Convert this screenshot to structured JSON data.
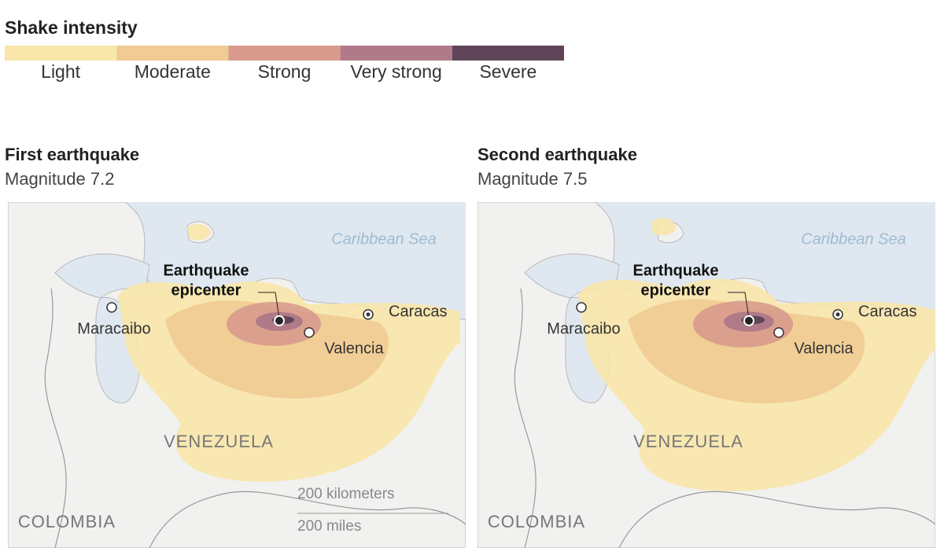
{
  "legend": {
    "title": "Shake intensity",
    "levels": [
      {
        "label": "Light",
        "color": "#f8e6aa"
      },
      {
        "label": "Moderate",
        "color": "#f0cb94"
      },
      {
        "label": "Strong",
        "color": "#d89b8c"
      },
      {
        "label": "Very strong",
        "color": "#b07a88"
      },
      {
        "label": "Severe",
        "color": "#5f4557"
      }
    ]
  },
  "maps": [
    {
      "title": "First earthquake",
      "subtitle": "Magnitude 7.2",
      "sea": "Caribbean Sea",
      "epicenter": [
        "Earthquake",
        "epicenter"
      ],
      "cities": [
        "Maracaibo",
        "Valencia",
        "Caracas"
      ],
      "countries": [
        "VENEZUELA",
        "COLOMBIA"
      ],
      "scale": [
        "200 kilometers",
        "200 miles"
      ]
    },
    {
      "title": "Second earthquake",
      "subtitle": "Magnitude 7.5",
      "sea": "Caribbean Sea",
      "epicenter": [
        "Earthquake",
        "epicenter"
      ],
      "cities": [
        "Maracaibo",
        "Valencia",
        "Caracas"
      ],
      "countries": [
        "VENEZUELA",
        "COLOMBIA"
      ]
    }
  ]
}
